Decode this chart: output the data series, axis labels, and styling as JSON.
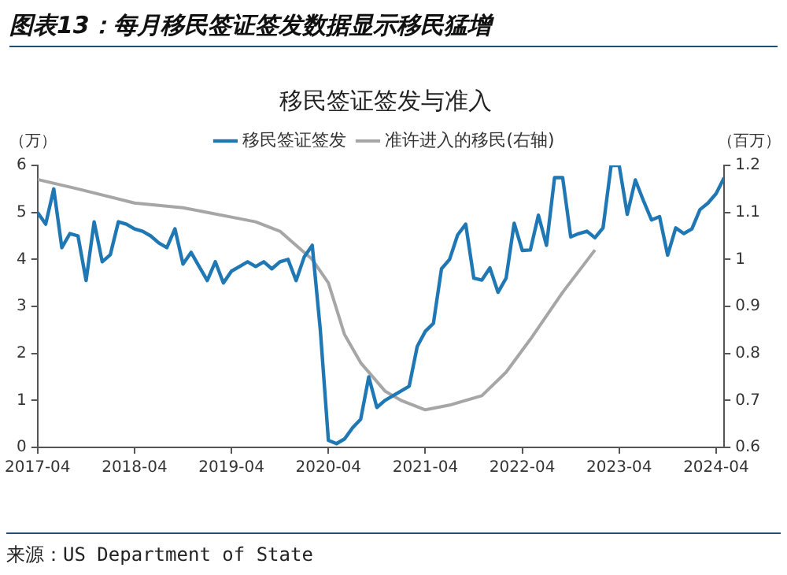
{
  "chart_data": {
    "type": "line",
    "title": "移民签证签发与准入",
    "annotations": [
      "图表13：每月移民签证签发数据显示移民猛增",
      "来源：US Department of State"
    ],
    "ylabel": "（万）",
    "y2label": "（百万）",
    "x": [
      "2017-04",
      "2017-05",
      "2017-06",
      "2017-07",
      "2017-08",
      "2017-09",
      "2017-10",
      "2017-11",
      "2017-12",
      "2018-01",
      "2018-02",
      "2018-03",
      "2018-04",
      "2018-05",
      "2018-06",
      "2018-07",
      "2018-08",
      "2018-09",
      "2018-10",
      "2018-11",
      "2018-12",
      "2019-01",
      "2019-02",
      "2019-03",
      "2019-04",
      "2019-05",
      "2019-06",
      "2019-07",
      "2019-08",
      "2019-09",
      "2019-10",
      "2019-11",
      "2019-12",
      "2020-01",
      "2020-02",
      "2020-03",
      "2020-04",
      "2020-05",
      "2020-06",
      "2020-07",
      "2020-08",
      "2020-09",
      "2020-10",
      "2020-11",
      "2020-12",
      "2021-01",
      "2021-02",
      "2021-03",
      "2021-04",
      "2021-05",
      "2021-06",
      "2021-07",
      "2021-08",
      "2021-09",
      "2021-10",
      "2021-11",
      "2021-12",
      "2022-01",
      "2022-02",
      "2022-03",
      "2022-04",
      "2022-05",
      "2022-06",
      "2022-07",
      "2022-08",
      "2022-09",
      "2022-10",
      "2022-11",
      "2022-12",
      "2023-01",
      "2023-02",
      "2023-03",
      "2023-04",
      "2023-05",
      "2023-06",
      "2023-07",
      "2023-08",
      "2023-09",
      "2023-10",
      "2023-11",
      "2023-12",
      "2024-01",
      "2024-02",
      "2024-03",
      "2024-04",
      "2024-05"
    ],
    "series": [
      {
        "name": "移民签证签发",
        "color": "#1f77b4",
        "values": [
          5.0,
          4.75,
          5.5,
          4.25,
          4.55,
          4.5,
          3.55,
          4.8,
          3.95,
          4.1,
          4.8,
          4.75,
          4.65,
          4.6,
          4.5,
          4.35,
          4.25,
          4.65,
          3.9,
          4.15,
          3.85,
          3.55,
          3.95,
          3.5,
          3.75,
          3.85,
          3.95,
          3.85,
          3.95,
          3.8,
          3.95,
          4.0,
          3.55,
          4.05,
          4.3,
          2.5,
          0.15,
          0.08,
          0.18,
          0.42,
          0.6,
          1.5,
          0.85,
          1.0,
          1.1,
          1.2,
          1.3,
          2.15,
          2.47,
          2.64,
          3.8,
          4.0,
          4.52,
          4.75,
          3.6,
          3.56,
          3.82,
          3.3,
          3.6,
          4.77,
          4.19,
          4.2,
          4.94,
          4.3,
          5.74,
          5.74,
          4.48,
          4.55,
          4.6,
          4.46,
          4.67,
          6.0,
          6.0,
          4.96,
          5.69,
          5.25,
          4.84,
          4.91,
          4.09,
          4.67,
          4.55,
          4.65,
          5.06,
          5.2,
          5.4,
          5.74
        ]
      },
      {
        "name": "准许进入的移民(右轴)",
        "color": "#a6a6a6",
        "axis": "y2",
        "x": [
          "2017-04",
          "2017-09",
          "2018-04",
          "2018-10",
          "2019-04",
          "2019-07",
          "2019-10",
          "2019-12",
          "2020-02",
          "2020-04",
          "2020-06",
          "2020-08",
          "2020-11",
          "2021-01",
          "2021-04",
          "2021-07",
          "2021-11",
          "2022-02",
          "2022-05",
          "2022-09",
          "2023-01"
        ],
        "values": [
          1.17,
          1.15,
          1.12,
          1.11,
          1.09,
          1.08,
          1.06,
          1.03,
          1.0,
          0.95,
          0.84,
          0.78,
          0.72,
          0.7,
          0.68,
          0.69,
          0.71,
          0.76,
          0.83,
          0.93,
          1.02
        ]
      }
    ],
    "xlim": [
      "2017-04",
      "2024-05"
    ],
    "xticks": [
      "2017-04",
      "2018-04",
      "2019-04",
      "2020-04",
      "2021-04",
      "2022-04",
      "2023-04",
      "2024-04"
    ],
    "ylim": [
      0,
      6
    ],
    "yticks": [
      0,
      1,
      2,
      3,
      4,
      5,
      6
    ],
    "y2lim": [
      0.6,
      1.2
    ],
    "y2ticks": [
      0.6,
      0.7,
      0.8,
      0.9,
      1,
      1.1,
      1.2
    ],
    "grid": false,
    "legend": "top",
    "marker": "none",
    "line_style": "solid"
  }
}
